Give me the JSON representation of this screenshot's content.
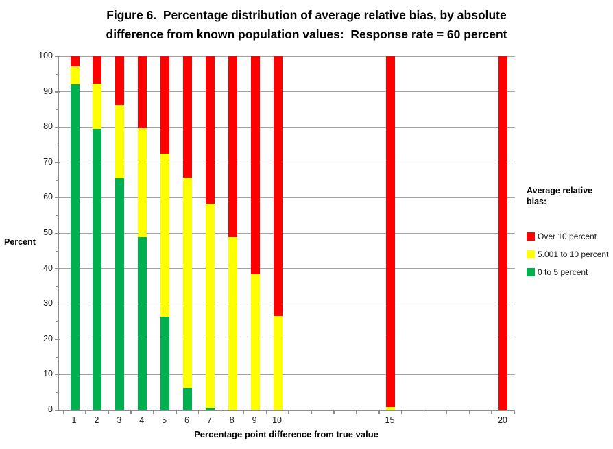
{
  "title": {
    "line1": "Figure 6.  Percentage distribution of average relative bias, by absolute",
    "line2": "difference from known population values:  Response rate = 60 percent"
  },
  "y_axis": {
    "title": "Percent",
    "tick_labels": [
      0,
      10,
      20,
      30,
      40,
      50,
      60,
      70,
      80,
      90,
      100
    ],
    "minor_tick_step": 5
  },
  "x_axis": {
    "title": "Percentage point difference from true value",
    "tick_labels": [
      1,
      2,
      3,
      4,
      5,
      6,
      7,
      8,
      9,
      10,
      15,
      20
    ]
  },
  "legend": {
    "header": "Average relative bias:",
    "items": [
      {
        "label": "Over 10 percent",
        "color": "#FF0000"
      },
      {
        "label": "5.001 to 10 percent",
        "color": "#FFFF00"
      },
      {
        "label": "0 to 5 percent",
        "color": "#00B050"
      }
    ]
  },
  "colors": {
    "green": "#00B050",
    "yellow": "#FFFF00",
    "red": "#FF0000",
    "gridline": "#a3a3a3",
    "axis": "#8c8c8c"
  },
  "chart_data": {
    "type": "bar",
    "stacked": true,
    "title": "Figure 6.  Percentage distribution of average relative bias, by absolute difference from known population values:  Response rate = 60 percent",
    "xlabel": "Percentage point difference from true value",
    "ylabel": "Percent",
    "ylim": [
      0,
      100
    ],
    "x_numeric_range": [
      0.3,
      20.52
    ],
    "grid": true,
    "legend_position": "right",
    "categories": [
      1,
      2,
      3,
      4,
      5,
      6,
      7,
      8,
      9,
      10,
      15,
      20
    ],
    "series": [
      {
        "name": "0 to 5 percent",
        "color": "#00B050",
        "values": [
          92.0,
          79.5,
          65.5,
          48.8,
          26.4,
          6.3,
          0.6,
          0,
          0,
          0,
          0,
          0
        ]
      },
      {
        "name": "5.001 to 10 percent",
        "color": "#FFFF00",
        "values": [
          5.1,
          12.7,
          20.8,
          30.8,
          46.1,
          59.4,
          57.7,
          48.9,
          38.4,
          26.5,
          0.8,
          0
        ]
      },
      {
        "name": "Over 10 percent",
        "color": "#FF0000",
        "values": [
          2.9,
          7.8,
          13.7,
          20.4,
          27.5,
          34.3,
          41.7,
          51.1,
          61.6,
          73.5,
          99.2,
          100
        ]
      }
    ]
  }
}
